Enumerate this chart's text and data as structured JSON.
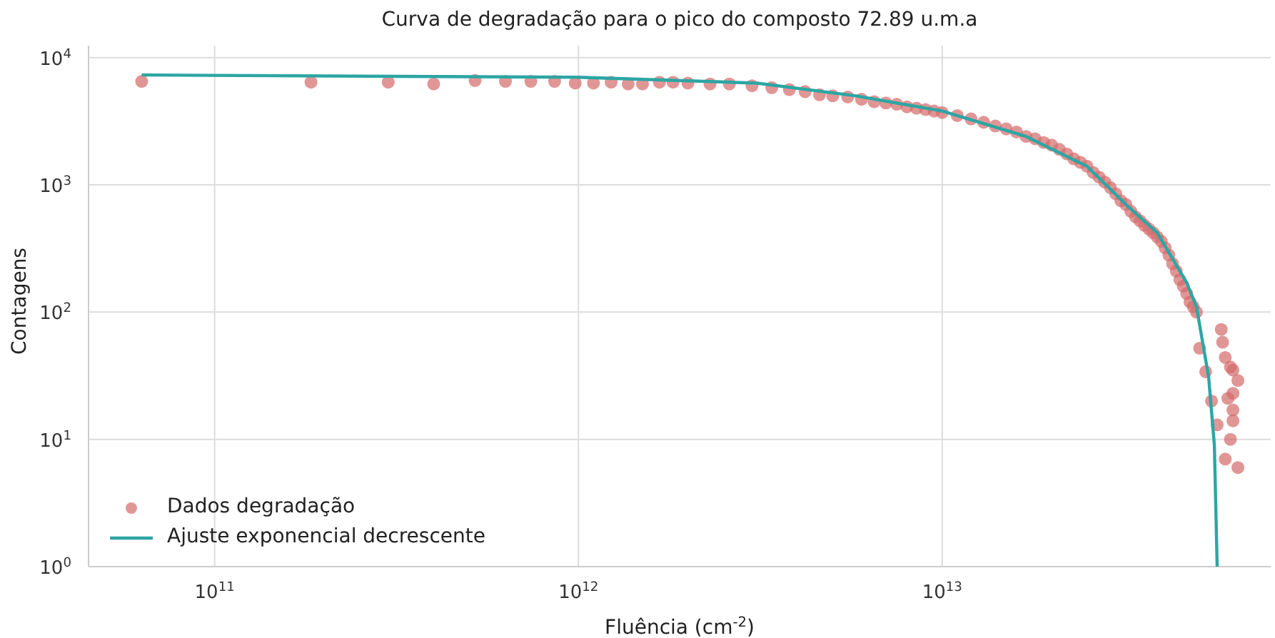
{
  "chart_data": {
    "type": "scatter",
    "title": "Curva de degradação para o pico do composto 72.89 u.m.a",
    "xlabel": "Fluência (cm$^{-2}$)",
    "ylabel": "Contagens",
    "log": "xy",
    "grid": true,
    "legend": "bottom left",
    "xlim": [
      45000000000.0,
      80000000000000.0
    ],
    "ylim": [
      1,
      12400
    ],
    "xticks": [
      {
        "value": 100000000000.0,
        "label": "10$^{11}$"
      },
      {
        "value": 1000000000000.0,
        "label": "10$^{12}$"
      },
      {
        "value": 10000000000000.0,
        "label": "10$^{13}$"
      }
    ],
    "yticks": [
      {
        "value": 1,
        "label": "10$^{0}$"
      },
      {
        "value": 10,
        "label": "10$^{1}$"
      },
      {
        "value": 100,
        "label": "10$^{2}$"
      },
      {
        "value": 1000,
        "label": "10$^{3}$"
      },
      {
        "value": 10000,
        "label": "10$^{4}$"
      }
    ],
    "series": [
      {
        "name": "Dados degradação",
        "marker": "circle",
        "color": "#d46a6a",
        "x": [
          63000000000.0,
          184000000000.0,
          300000000000.0,
          400000000000.0,
          520000000000.0,
          630000000000.0,
          740000000000.0,
          860000000000.0,
          980000000000.0,
          1100000000000.0,
          1230000000000.0,
          1370000000000.0,
          1500000000000.0,
          1670000000000.0,
          1820000000000.0,
          2000000000000.0,
          2300000000000.0,
          2600000000000.0,
          3000000000000.0,
          3400000000000.0,
          3800000000000.0,
          4200000000000.0,
          4600000000000.0,
          5000000000000.0,
          5500000000000.0,
          6000000000000.0,
          6500000000000.0,
          7000000000000.0,
          7500000000000.0,
          8000000000000.0,
          8500000000000.0,
          9000000000000.0,
          9500000000000.0,
          10000000000000.0,
          11000000000000.0,
          12000000000000.0,
          13000000000000.0,
          14000000000000.0,
          15000000000000.0,
          16000000000000.0,
          17000000000000.0,
          18000000000000.0,
          19000000000000.0,
          20000000000000.0,
          21000000000000.0,
          22000000000000.0,
          23000000000000.0,
          24000000000000.0,
          25000000000000.0,
          26000000000000.0,
          27000000000000.0,
          28000000000000.0,
          29000000000000.0,
          30000000000000.0,
          31000000000000.0,
          32000000000000.0,
          33000000000000.0,
          34000000000000.0,
          35000000000000.0,
          36000000000000.0,
          37000000000000.0,
          38000000000000.0,
          39000000000000.0,
          40000000000000.0,
          41000000000000.0,
          42000000000000.0,
          43000000000000.0,
          44000000000000.0,
          45000000000000.0,
          46000000000000.0,
          47000000000000.0,
          48000000000000.0,
          49000000000000.0,
          50000000000000.0,
          51000000000000.0,
          53000000000000.0,
          55000000000000.0,
          57000000000000.0,
          58500000000000.0,
          59000000000000.0,
          60000000000000.0,
          60000000000000.0,
          61000000000000.0,
          62000000000000.0,
          62000000000000.0,
          63000000000000.0,
          63000000000000.0,
          63000000000000.0,
          63000000000000.0,
          65000000000000.0,
          65000000000000.0
        ],
        "values": [
          6500,
          6400,
          6400,
          6200,
          6600,
          6500,
          6500,
          6500,
          6300,
          6300,
          6400,
          6200,
          6200,
          6400,
          6400,
          6300,
          6200,
          6200,
          6000,
          5800,
          5600,
          5400,
          5100,
          5000,
          4900,
          4700,
          4500,
          4400,
          4300,
          4100,
          4000,
          3900,
          3800,
          3700,
          3500,
          3300,
          3100,
          2900,
          2750,
          2600,
          2400,
          2300,
          2150,
          2050,
          1900,
          1750,
          1600,
          1500,
          1400,
          1250,
          1150,
          1050,
          950,
          850,
          750,
          700,
          620,
          560,
          520,
          480,
          450,
          420,
          390,
          360,
          320,
          280,
          240,
          210,
          180,
          160,
          140,
          120,
          110,
          100,
          52,
          34,
          20,
          13,
          73,
          58,
          44,
          7,
          21,
          37,
          10,
          35,
          17,
          23,
          14,
          6,
          29
        ]
      },
      {
        "name": "Ajuste exponencial decrescente",
        "type": "line",
        "color": "#2ca6a4",
        "line_style": "solid",
        "x": [
          63000000000.0,
          1000000000000.0,
          3100000000000.0,
          5800000000000.0,
          10000000000000.0,
          17000000000000.0,
          25000000000000.0,
          32000000000000.0,
          39000000000000.0,
          47000000000000.0,
          50000000000000.0,
          54000000000000.0,
          56000000000000.0,
          57000000000000.0
        ],
        "values": [
          7300,
          7000,
          6300,
          5000,
          3800,
          2400,
          1400,
          700,
          420,
          170,
          110,
          31,
          9,
          1
        ]
      }
    ]
  }
}
